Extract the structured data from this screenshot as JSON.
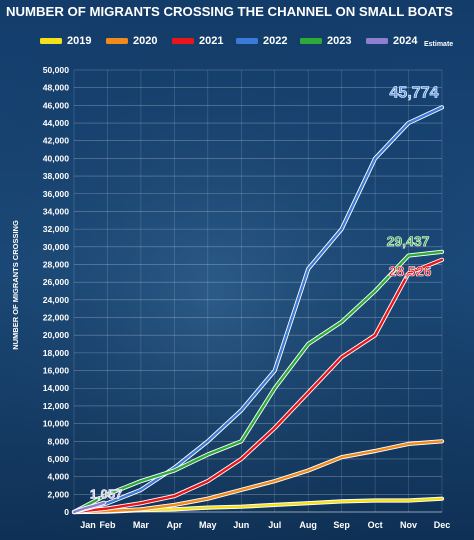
{
  "chart_data": {
    "type": "line",
    "title": "NUMBER OF MIGRANTS CROSSING THE CHANNEL ON SMALL BOATS",
    "xlabel": "",
    "ylabel": "NUMBER OF MIGRANTS CROSSING",
    "ylim": [
      0,
      50000
    ],
    "yticks": [
      0,
      2000,
      4000,
      6000,
      8000,
      10000,
      12000,
      14000,
      16000,
      18000,
      20000,
      22000,
      24000,
      26000,
      28000,
      30000,
      32000,
      34000,
      36000,
      38000,
      40000,
      42000,
      44000,
      46000,
      48000,
      50000
    ],
    "ytick_labels": [
      "0",
      "2,000",
      "4,000",
      "6,000",
      "8,000",
      "10,000",
      "12,000",
      "14,000",
      "16,000",
      "18,000",
      "20,000",
      "22,000",
      "24,000",
      "26,000",
      "28,000",
      "30,000",
      "32,000",
      "34,000",
      "36,000",
      "38,000",
      "40,000",
      "42,000",
      "44,000",
      "46,000",
      "48,000",
      "50,000"
    ],
    "categories": [
      "Jan",
      "Feb",
      "Mar",
      "Apr",
      "May",
      "Jun",
      "Jul",
      "Aug",
      "Sep",
      "Oct",
      "Nov",
      "Dec"
    ],
    "legend_position": "top",
    "grid": true,
    "estimate_note": "Estimate",
    "series": [
      {
        "name": "2019",
        "color": "#f5e11b",
        "x": [
          1,
          2,
          3,
          4,
          5,
          6,
          7,
          8,
          9,
          10,
          11,
          12
        ],
        "values": [
          0,
          50,
          200,
          300,
          500,
          600,
          800,
          1000,
          1200,
          1300,
          1300,
          1500
        ]
      },
      {
        "name": "2020",
        "color": "#f08a1c",
        "x": [
          1,
          2,
          3,
          4,
          5,
          6,
          7,
          8,
          9,
          10,
          11,
          12
        ],
        "values": [
          0,
          100,
          300,
          800,
          1500,
          2500,
          3500,
          4700,
          6200,
          6900,
          7700,
          8000
        ]
      },
      {
        "name": "2021",
        "color": "#e8161b",
        "x": [
          1,
          2,
          3,
          4,
          5,
          6,
          7,
          8,
          9,
          10,
          11,
          12
        ],
        "values": [
          0,
          400,
          1000,
          1800,
          3500,
          6000,
          9500,
          13500,
          17500,
          20000,
          27000,
          28526
        ]
      },
      {
        "name": "2022",
        "color": "#3a7ad8",
        "x": [
          1,
          2,
          3,
          4,
          5,
          6,
          7,
          8,
          9,
          10,
          11,
          12
        ],
        "values": [
          0,
          1000,
          2500,
          5000,
          8000,
          11500,
          16000,
          27500,
          32000,
          40000,
          44000,
          45774
        ]
      },
      {
        "name": "2023",
        "color": "#2eaa3a",
        "x": [
          1,
          2,
          3,
          4,
          5,
          6,
          7,
          8,
          9,
          10,
          11,
          12
        ],
        "values": [
          0,
          2000,
          3500,
          4700,
          6500,
          8000,
          14000,
          19000,
          21500,
          25000,
          29000,
          29437
        ]
      },
      {
        "name": "2024",
        "color": "#8f7fd0",
        "x": [
          1,
          1.3,
          1.6,
          1.9
        ],
        "values": [
          0,
          400,
          700,
          1057
        ]
      }
    ],
    "annotations": [
      {
        "text": "45,774",
        "series": "2022",
        "color": "#5a9cf0"
      },
      {
        "text": "29,437",
        "series": "2023",
        "color": "#2eaa3a"
      },
      {
        "text": "28,526",
        "series": "2021",
        "color": "#e8161b"
      },
      {
        "text": "1,057",
        "series": "2024",
        "color": "#c8c0f0"
      }
    ]
  }
}
